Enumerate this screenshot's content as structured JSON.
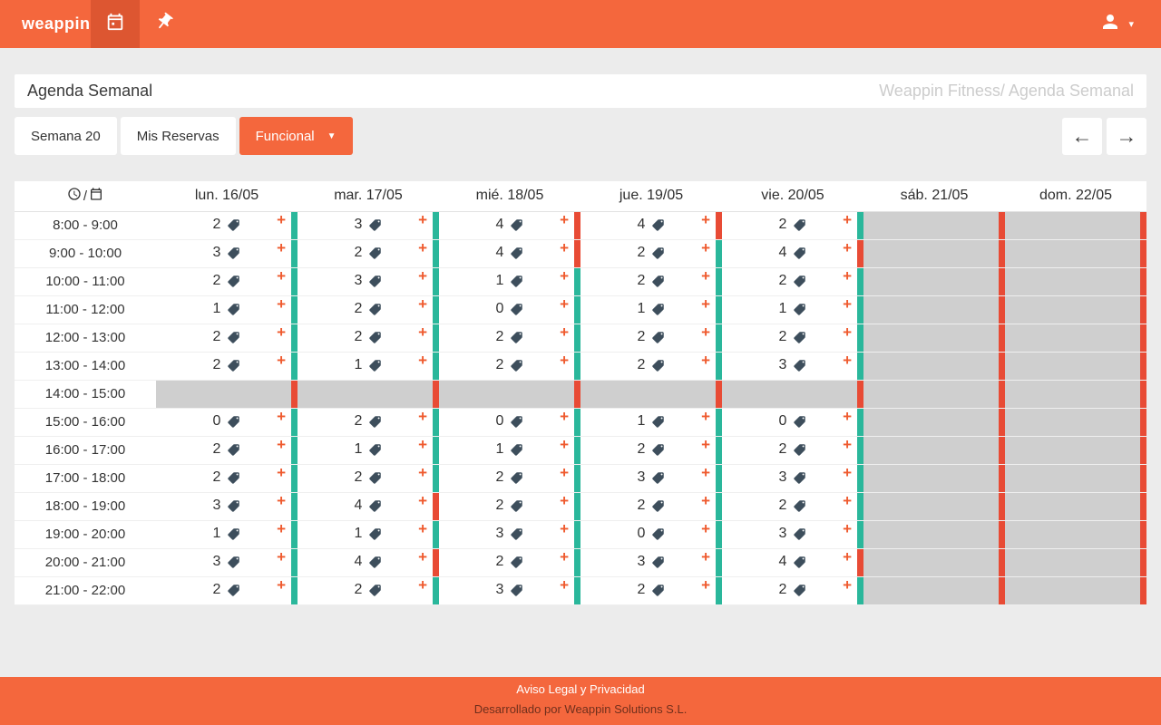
{
  "colors": {
    "accent": "#f4673d",
    "accent_dark": "#dd5631",
    "teal": "#2ab79b",
    "red": "#e84b35",
    "disabled": "#cfcfcf",
    "page_bg": "#ececec"
  },
  "navbar": {
    "logo": "weappin"
  },
  "header": {
    "title": "Agenda Semanal",
    "breadcrumb": "Weappin Fitness/ Agenda Semanal"
  },
  "toolbar": {
    "week_label": "Semana 20",
    "my_reservations_label": "Mis Reservas",
    "filter_label": "Funcional"
  },
  "table": {
    "days": [
      "lun. 16/05",
      "mar. 17/05",
      "mié. 18/05",
      "jue. 19/05",
      "vie. 20/05",
      "sáb. 21/05",
      "dom. 22/05"
    ],
    "rows": [
      {
        "time": "8:00 - 9:00",
        "cells": [
          {
            "state": "open",
            "count": 2
          },
          {
            "state": "open",
            "count": 3
          },
          {
            "state": "full",
            "count": 4
          },
          {
            "state": "full",
            "count": 4
          },
          {
            "state": "open",
            "count": 2
          },
          {
            "state": "closed"
          },
          {
            "state": "closed"
          }
        ]
      },
      {
        "time": "9:00 - 10:00",
        "cells": [
          {
            "state": "open",
            "count": 3
          },
          {
            "state": "open",
            "count": 2
          },
          {
            "state": "full",
            "count": 4
          },
          {
            "state": "open",
            "count": 2
          },
          {
            "state": "full",
            "count": 4
          },
          {
            "state": "closed"
          },
          {
            "state": "closed"
          }
        ]
      },
      {
        "time": "10:00 - 11:00",
        "cells": [
          {
            "state": "open",
            "count": 2
          },
          {
            "state": "open",
            "count": 3
          },
          {
            "state": "open",
            "count": 1
          },
          {
            "state": "open",
            "count": 2
          },
          {
            "state": "open",
            "count": 2
          },
          {
            "state": "closed"
          },
          {
            "state": "closed"
          }
        ]
      },
      {
        "time": "11:00 - 12:00",
        "cells": [
          {
            "state": "open",
            "count": 1
          },
          {
            "state": "open",
            "count": 2
          },
          {
            "state": "open",
            "count": 0
          },
          {
            "state": "open",
            "count": 1
          },
          {
            "state": "open",
            "count": 1
          },
          {
            "state": "closed"
          },
          {
            "state": "closed"
          }
        ]
      },
      {
        "time": "12:00 - 13:00",
        "cells": [
          {
            "state": "open",
            "count": 2
          },
          {
            "state": "open",
            "count": 2
          },
          {
            "state": "open",
            "count": 2
          },
          {
            "state": "open",
            "count": 2
          },
          {
            "state": "open",
            "count": 2
          },
          {
            "state": "closed"
          },
          {
            "state": "closed"
          }
        ]
      },
      {
        "time": "13:00 - 14:00",
        "cells": [
          {
            "state": "open",
            "count": 2
          },
          {
            "state": "open",
            "count": 1
          },
          {
            "state": "open",
            "count": 2
          },
          {
            "state": "open",
            "count": 2
          },
          {
            "state": "open",
            "count": 3
          },
          {
            "state": "closed"
          },
          {
            "state": "closed"
          }
        ]
      },
      {
        "time": "14:00 - 15:00",
        "cells": [
          {
            "state": "closed"
          },
          {
            "state": "closed"
          },
          {
            "state": "closed"
          },
          {
            "state": "closed"
          },
          {
            "state": "closed"
          },
          {
            "state": "closed"
          },
          {
            "state": "closed"
          }
        ]
      },
      {
        "time": "15:00 - 16:00",
        "cells": [
          {
            "state": "open",
            "count": 0
          },
          {
            "state": "open",
            "count": 2
          },
          {
            "state": "open",
            "count": 0
          },
          {
            "state": "open",
            "count": 1
          },
          {
            "state": "open",
            "count": 0
          },
          {
            "state": "closed"
          },
          {
            "state": "closed"
          }
        ]
      },
      {
        "time": "16:00 - 17:00",
        "cells": [
          {
            "state": "open",
            "count": 2
          },
          {
            "state": "open",
            "count": 1
          },
          {
            "state": "open",
            "count": 1
          },
          {
            "state": "open",
            "count": 2
          },
          {
            "state": "open",
            "count": 2
          },
          {
            "state": "closed"
          },
          {
            "state": "closed"
          }
        ]
      },
      {
        "time": "17:00 - 18:00",
        "cells": [
          {
            "state": "open",
            "count": 2
          },
          {
            "state": "open",
            "count": 2
          },
          {
            "state": "open",
            "count": 2
          },
          {
            "state": "open",
            "count": 3
          },
          {
            "state": "open",
            "count": 3
          },
          {
            "state": "closed"
          },
          {
            "state": "closed"
          }
        ]
      },
      {
        "time": "18:00 - 19:00",
        "cells": [
          {
            "state": "open",
            "count": 3
          },
          {
            "state": "full",
            "count": 4
          },
          {
            "state": "open",
            "count": 2
          },
          {
            "state": "open",
            "count": 2
          },
          {
            "state": "open",
            "count": 2
          },
          {
            "state": "closed"
          },
          {
            "state": "closed"
          }
        ]
      },
      {
        "time": "19:00 - 20:00",
        "cells": [
          {
            "state": "open",
            "count": 1
          },
          {
            "state": "open",
            "count": 1
          },
          {
            "state": "open",
            "count": 3
          },
          {
            "state": "open",
            "count": 0
          },
          {
            "state": "open",
            "count": 3
          },
          {
            "state": "closed"
          },
          {
            "state": "closed"
          }
        ]
      },
      {
        "time": "20:00 - 21:00",
        "cells": [
          {
            "state": "open",
            "count": 3
          },
          {
            "state": "full",
            "count": 4
          },
          {
            "state": "open",
            "count": 2
          },
          {
            "state": "open",
            "count": 3
          },
          {
            "state": "full",
            "count": 4
          },
          {
            "state": "closed"
          },
          {
            "state": "closed"
          }
        ]
      },
      {
        "time": "21:00 - 22:00",
        "cells": [
          {
            "state": "open",
            "count": 2
          },
          {
            "state": "open",
            "count": 2
          },
          {
            "state": "open",
            "count": 3
          },
          {
            "state": "open",
            "count": 2
          },
          {
            "state": "open",
            "count": 2
          },
          {
            "state": "closed"
          },
          {
            "state": "closed"
          }
        ]
      }
    ]
  },
  "footer": {
    "legal_link": "Aviso Legal y Privacidad",
    "credit": "Desarrollado por Weappin Solutions S.L."
  }
}
